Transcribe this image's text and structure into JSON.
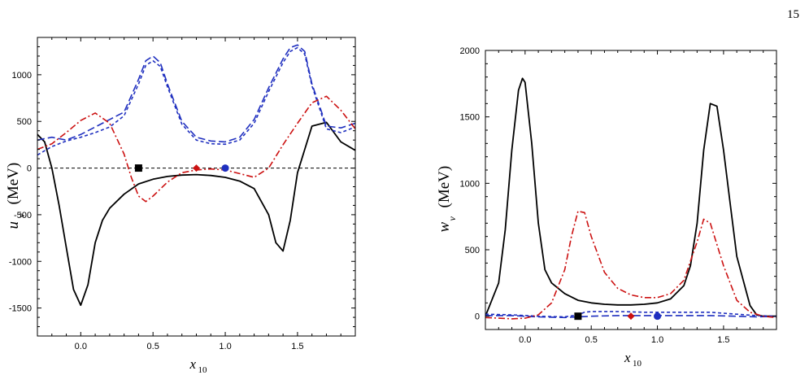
{
  "page_number": "15",
  "chart_data": [
    {
      "type": "line",
      "xlabel": "x",
      "xlabel_sub": "10",
      "ylabel": "u",
      "ylabel_sub": "v",
      "ylabel_unit": "(MeV)",
      "xlim": [
        -0.3,
        1.9
      ],
      "ylim": [
        -1800,
        1400
      ],
      "xticks": [
        0.0,
        0.5,
        1.0,
        1.5
      ],
      "xtick_labels": [
        "0.0",
        "0.5",
        "1.0",
        "1.5"
      ],
      "yticks": [
        -1500,
        -1000,
        -500,
        0,
        500,
        1000
      ],
      "ytick_labels": [
        "-1500",
        "-1000",
        "-500",
        "0",
        "500",
        "1000"
      ],
      "grid": false,
      "series": [
        {
          "color": "#000000",
          "dash": "solid",
          "x": [
            -0.3,
            -0.25,
            -0.2,
            -0.15,
            -0.1,
            -0.05,
            0.0,
            0.05,
            0.1,
            0.15,
            0.2,
            0.3,
            0.4,
            0.5,
            0.6,
            0.7,
            0.8,
            0.9,
            1.0,
            1.1,
            1.2,
            1.3,
            1.35,
            1.4,
            1.45,
            1.5,
            1.6,
            1.7,
            1.8,
            1.9
          ],
          "y": [
            360,
            280,
            0,
            -400,
            -850,
            -1300,
            -1470,
            -1250,
            -800,
            -560,
            -430,
            -280,
            -170,
            -120,
            -90,
            -75,
            -70,
            -80,
            -100,
            -140,
            -220,
            -500,
            -800,
            -890,
            -560,
            -50,
            450,
            490,
            280,
            190
          ]
        },
        {
          "color": "#1f2fbf",
          "dash": "long",
          "x": [
            -0.3,
            -0.2,
            -0.1,
            0.0,
            0.1,
            0.2,
            0.3,
            0.4,
            0.45,
            0.5,
            0.55,
            0.6,
            0.7,
            0.8,
            0.9,
            1.0,
            1.1,
            1.2,
            1.3,
            1.4,
            1.45,
            1.5,
            1.55,
            1.6,
            1.7,
            1.8,
            1.9
          ],
          "y": [
            300,
            330,
            300,
            360,
            440,
            520,
            600,
            950,
            1150,
            1200,
            1130,
            900,
            500,
            330,
            290,
            280,
            330,
            520,
            860,
            1170,
            1290,
            1320,
            1250,
            900,
            450,
            430,
            480
          ]
        },
        {
          "color": "#1f2fbf",
          "dash": "short",
          "x": [
            -0.3,
            -0.2,
            -0.1,
            0.0,
            0.1,
            0.2,
            0.3,
            0.4,
            0.45,
            0.5,
            0.55,
            0.6,
            0.7,
            0.8,
            0.9,
            1.0,
            1.1,
            1.2,
            1.3,
            1.4,
            1.45,
            1.5,
            1.55,
            1.6,
            1.7,
            1.8,
            1.9
          ],
          "y": [
            140,
            230,
            290,
            330,
            380,
            440,
            560,
            900,
            1100,
            1150,
            1090,
            870,
            470,
            300,
            260,
            255,
            300,
            480,
            820,
            1130,
            1250,
            1290,
            1220,
            880,
            420,
            380,
            440
          ]
        },
        {
          "color": "#cc1111",
          "dash": "dashdot",
          "x": [
            -0.3,
            -0.2,
            -0.1,
            0.0,
            0.1,
            0.2,
            0.3,
            0.35,
            0.4,
            0.45,
            0.5,
            0.6,
            0.7,
            0.8,
            0.9,
            1.0,
            1.1,
            1.2,
            1.3,
            1.4,
            1.5,
            1.6,
            1.7,
            1.8,
            1.9
          ],
          "y": [
            200,
            260,
            380,
            510,
            590,
            480,
            150,
            -100,
            -300,
            -360,
            -300,
            -150,
            -50,
            -20,
            -10,
            -20,
            -60,
            -100,
            0,
            250,
            480,
            700,
            770,
            620,
            420
          ]
        }
      ],
      "markers": [
        {
          "shape": "square",
          "color": "#000000",
          "x": 0.4,
          "y": 0
        },
        {
          "shape": "diamond",
          "color": "#cc1111",
          "x": 0.8,
          "y": 0
        },
        {
          "shape": "circle",
          "color": "#1f2fbf",
          "x": 1.0,
          "y": 0
        }
      ],
      "reference_line": {
        "y": 0,
        "dash": "short",
        "color": "#000000"
      }
    },
    {
      "type": "line",
      "xlabel": "x",
      "xlabel_sub": "10",
      "ylabel": "w",
      "ylabel_sub": "v",
      "ylabel_unit": "(MeV)",
      "xlim": [
        -0.3,
        1.9
      ],
      "ylim": [
        -100,
        2000
      ],
      "xticks": [
        0.0,
        0.5,
        1.0,
        1.5
      ],
      "xtick_labels": [
        "0.0",
        "0.5",
        "1.0",
        "1.5"
      ],
      "yticks": [
        0,
        500,
        1000,
        1500,
        2000
      ],
      "ytick_labels": [
        "0",
        "500",
        "1000",
        "1500",
        "2000"
      ],
      "grid": false,
      "series": [
        {
          "color": "#000000",
          "dash": "solid",
          "x": [
            -0.3,
            -0.2,
            -0.15,
            -0.1,
            -0.05,
            -0.02,
            0.0,
            0.05,
            0.1,
            0.15,
            0.2,
            0.3,
            0.4,
            0.5,
            0.6,
            0.7,
            0.8,
            0.9,
            1.0,
            1.1,
            1.2,
            1.25,
            1.3,
            1.35,
            1.4,
            1.45,
            1.5,
            1.55,
            1.6,
            1.7,
            1.75,
            1.8,
            1.9
          ],
          "y": [
            0,
            250,
            650,
            1250,
            1700,
            1790,
            1760,
            1300,
            700,
            350,
            250,
            170,
            120,
            100,
            90,
            85,
            85,
            90,
            100,
            130,
            230,
            380,
            700,
            1250,
            1600,
            1580,
            1250,
            850,
            450,
            80,
            10,
            0,
            0
          ]
        },
        {
          "color": "#1f2fbf",
          "dash": "long",
          "x": [
            -0.3,
            -0.1,
            0.1,
            0.3,
            0.4,
            0.5,
            0.7,
            0.9,
            1.0,
            1.2,
            1.4,
            1.6,
            1.75,
            1.9
          ],
          "y": [
            5,
            5,
            -5,
            -10,
            -5,
            0,
            5,
            5,
            5,
            5,
            5,
            0,
            -5,
            0
          ]
        },
        {
          "color": "#1f2fbf",
          "dash": "short",
          "x": [
            -0.3,
            -0.1,
            0.1,
            0.3,
            0.4,
            0.45,
            0.5,
            0.7,
            0.9,
            1.0,
            1.2,
            1.4,
            1.6,
            1.75,
            1.9
          ],
          "y": [
            15,
            10,
            0,
            -5,
            10,
            30,
            35,
            35,
            30,
            30,
            30,
            30,
            15,
            5,
            0
          ]
        },
        {
          "color": "#cc1111",
          "dash": "dashdot",
          "x": [
            -0.3,
            -0.1,
            0.0,
            0.1,
            0.2,
            0.3,
            0.35,
            0.4,
            0.45,
            0.5,
            0.6,
            0.7,
            0.8,
            0.9,
            1.0,
            1.1,
            1.2,
            1.3,
            1.35,
            1.4,
            1.5,
            1.6,
            1.7,
            1.8,
            1.9
          ],
          "y": [
            -10,
            -20,
            -15,
            10,
            100,
            350,
            600,
            790,
            780,
            600,
            330,
            210,
            160,
            140,
            140,
            170,
            270,
            560,
            730,
            700,
            380,
            120,
            30,
            0,
            -10
          ]
        }
      ],
      "markers": [
        {
          "shape": "square",
          "color": "#000000",
          "x": 0.4,
          "y": 0
        },
        {
          "shape": "diamond",
          "color": "#cc1111",
          "x": 0.8,
          "y": 0
        },
        {
          "shape": "circle",
          "color": "#1f2fbf",
          "x": 1.0,
          "y": 0
        }
      ],
      "reference_line": null
    }
  ]
}
